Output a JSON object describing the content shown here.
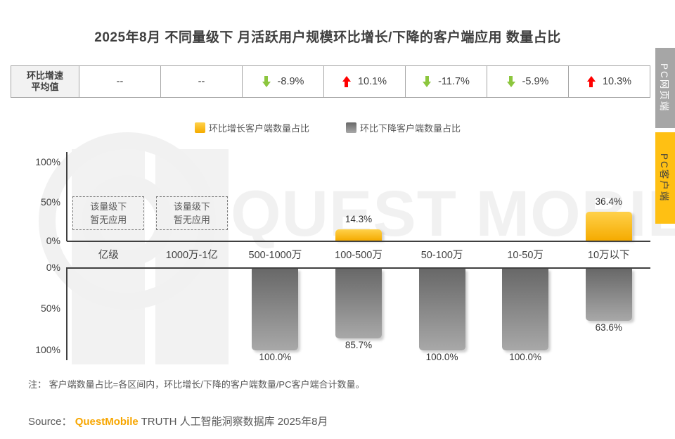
{
  "title": "2025年8月 不同量级下 月活跃用户规模环比增长/下降的客户端应用 数量占比",
  "avg_table": {
    "header": [
      "环比增速",
      "平均值"
    ],
    "cells": [
      {
        "arrow": "",
        "value": "--"
      },
      {
        "arrow": "",
        "value": "--"
      },
      {
        "arrow": "down",
        "value": "-8.9%"
      },
      {
        "arrow": "up",
        "value": "10.1%"
      },
      {
        "arrow": "down",
        "value": "-11.7%"
      },
      {
        "arrow": "down",
        "value": "-5.9%"
      },
      {
        "arrow": "up",
        "value": "10.3%"
      }
    ]
  },
  "legend": [
    {
      "label": "环比增长客户端数量占比",
      "type": "growth"
    },
    {
      "label": "环比下降客户端数量占比",
      "type": "decline"
    }
  ],
  "chart_data": {
    "type": "bar",
    "categories": [
      "亿级",
      "1000万-1亿",
      "500-1000万",
      "100-500万",
      "50-100万",
      "10-50万",
      "10万以下"
    ],
    "series": [
      {
        "name": "环比增长客户端数量占比",
        "values": [
          null,
          null,
          0,
          14.3,
          0,
          0,
          36.4
        ],
        "labels": [
          "",
          "",
          "",
          "14.3%",
          "",
          "",
          "36.4%"
        ]
      },
      {
        "name": "环比下降客户端数量占比",
        "values": [
          null,
          null,
          100.0,
          85.7,
          100.0,
          100.0,
          63.6
        ],
        "labels": [
          "",
          "",
          "100.0%",
          "85.7%",
          "100.0%",
          "100.0%",
          "63.6%"
        ]
      }
    ],
    "no_app_lines": [
      "该量级下",
      "暂无应用"
    ],
    "axis_ticks_top": [
      "100%",
      "50%",
      "0%"
    ],
    "axis_ticks_bottom": [
      "0%",
      "50%",
      "100%"
    ],
    "ylim": [
      0,
      100
    ],
    "grid": false,
    "legend_position": "top"
  },
  "side_tabs": [
    {
      "label": "PC网页端",
      "active": false
    },
    {
      "label": "PC客户端",
      "active": true
    }
  ],
  "note": "注： 客户端数量占比=各区间内，环比增长/下降的客户端数量/PC客户端合计数量。",
  "source": {
    "prefix": "Source：",
    "brand": "QuestMobile",
    "suffix": " TRUTH 人工智能洞察数据库 2025年8月"
  },
  "watermark": "QUEST MOBILE",
  "colors": {
    "arrow_up": "#ff0000",
    "arrow_down": "#8cc63e",
    "bar_yellow_top": "#ffd14b",
    "bar_yellow_bottom": "#f5ab00",
    "bar_gray_top": "#686868",
    "bar_gray_bottom": "#a8a8a8",
    "tab_yellow": "#ffc013",
    "tab_gray": "#a6a6a6",
    "brand_orange": "#f7a600"
  }
}
